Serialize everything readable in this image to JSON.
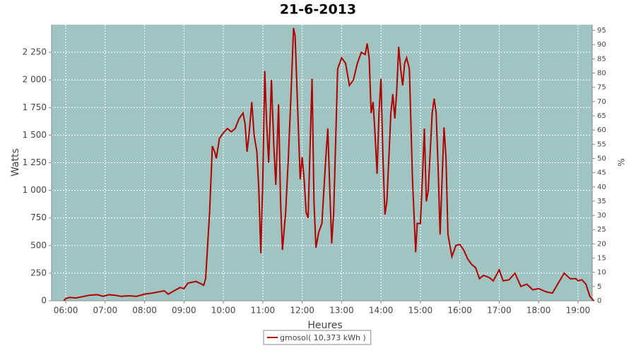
{
  "chart_data": {
    "type": "line",
    "title": "21-6-2013",
    "x_label": "Heures",
    "y_label": "Watts",
    "y2_label": "%",
    "x": [
      5.95,
      6.0,
      6.1,
      6.25,
      6.4,
      6.6,
      6.8,
      6.95,
      7.1,
      7.25,
      7.4,
      7.6,
      7.8,
      8.0,
      8.2,
      8.35,
      8.5,
      8.6,
      8.75,
      8.9,
      9.0,
      9.1,
      9.3,
      9.45,
      9.5,
      9.55,
      9.65,
      9.72,
      9.78,
      9.82,
      9.9,
      10.0,
      10.1,
      10.2,
      10.3,
      10.4,
      10.5,
      10.55,
      10.6,
      10.65,
      10.72,
      10.78,
      10.85,
      10.9,
      10.95,
      11.0,
      11.05,
      11.1,
      11.15,
      11.22,
      11.28,
      11.33,
      11.4,
      11.45,
      11.5,
      11.58,
      11.65,
      11.72,
      11.78,
      11.82,
      11.88,
      11.95,
      12.0,
      12.05,
      12.1,
      12.15,
      12.2,
      12.25,
      12.3,
      12.35,
      12.42,
      12.5,
      12.6,
      12.65,
      12.7,
      12.75,
      12.8,
      12.9,
      12.95,
      13.0,
      13.1,
      13.2,
      13.3,
      13.4,
      13.5,
      13.6,
      13.65,
      13.7,
      13.75,
      13.8,
      13.85,
      13.9,
      13.95,
      14.0,
      14.05,
      14.1,
      14.15,
      14.25,
      14.3,
      14.35,
      14.4,
      14.45,
      14.5,
      14.55,
      14.6,
      14.65,
      14.72,
      14.8,
      14.88,
      14.92,
      15.0,
      15.05,
      15.1,
      15.15,
      15.2,
      15.3,
      15.35,
      15.4,
      15.45,
      15.5,
      15.55,
      15.6,
      15.65,
      15.7,
      15.8,
      15.9,
      16.0,
      16.1,
      16.2,
      16.3,
      16.4,
      16.5,
      16.6,
      16.75,
      16.85,
      17.0,
      17.1,
      17.25,
      17.4,
      17.55,
      17.7,
      17.85,
      18.0,
      18.2,
      18.35,
      18.5,
      18.65,
      18.8,
      18.95,
      19.0,
      19.1,
      19.2,
      19.3,
      19.4
    ],
    "series": [
      {
        "name": "gmosol( 10,373 kWh )",
        "color": "#b00000",
        "values": [
          0,
          20,
          30,
          25,
          35,
          50,
          55,
          40,
          55,
          50,
          40,
          45,
          40,
          60,
          70,
          80,
          90,
          60,
          90,
          120,
          110,
          160,
          175,
          150,
          140,
          200,
          800,
          1400,
          1350,
          1290,
          1470,
          1520,
          1560,
          1530,
          1560,
          1650,
          1700,
          1600,
          1350,
          1500,
          1800,
          1500,
          1350,
          1000,
          430,
          1100,
          2080,
          1600,
          1250,
          2000,
          1400,
          1050,
          1780,
          900,
          460,
          800,
          1300,
          1900,
          2470,
          2400,
          1800,
          1100,
          1300,
          1100,
          800,
          750,
          1400,
          2010,
          900,
          480,
          620,
          700,
          1300,
          1560,
          1000,
          520,
          800,
          2100,
          2150,
          2200,
          2150,
          1950,
          2000,
          2150,
          2250,
          2230,
          2330,
          2200,
          1700,
          1800,
          1500,
          1150,
          1700,
          2010,
          1300,
          780,
          900,
          1700,
          1870,
          1650,
          1900,
          2300,
          2100,
          1950,
          2150,
          2200,
          2100,
          1100,
          440,
          700,
          700,
          1100,
          1560,
          900,
          1000,
          1700,
          1830,
          1700,
          1200,
          600,
          1100,
          1570,
          1300,
          600,
          400,
          500,
          510,
          460,
          380,
          330,
          300,
          200,
          230,
          210,
          180,
          280,
          180,
          190,
          250,
          130,
          150,
          100,
          110,
          80,
          70,
          160,
          250,
          200,
          200,
          180,
          190,
          150,
          40,
          0
        ]
      }
    ],
    "xlim": [
      5.64,
      19.36
    ],
    "xticks": [
      {
        "value": 6,
        "label": "06:00"
      },
      {
        "value": 7,
        "label": "07:00"
      },
      {
        "value": 8,
        "label": "08:00"
      },
      {
        "value": 9,
        "label": "09:00"
      },
      {
        "value": 10,
        "label": "10:00"
      },
      {
        "value": 11,
        "label": "11:00"
      },
      {
        "value": 12,
        "label": "12:00"
      },
      {
        "value": 13,
        "label": "13:00"
      },
      {
        "value": 14,
        "label": "14:00"
      },
      {
        "value": 15,
        "label": "15:00"
      },
      {
        "value": 16,
        "label": "16:00"
      },
      {
        "value": 17,
        "label": "17:00"
      },
      {
        "value": 18,
        "label": "18:00"
      },
      {
        "value": 19,
        "label": "19:00"
      }
    ],
    "ylim": [
      0,
      2500
    ],
    "yticks": [
      0,
      250,
      500,
      750,
      {
        "value": 1000,
        "label": "1 000"
      },
      {
        "value": 1250,
        "label": "1 250"
      },
      {
        "value": 1500,
        "label": "1 500"
      },
      {
        "value": 1750,
        "label": "1 750"
      },
      {
        "value": 2000,
        "label": "2 000"
      },
      {
        "value": 2250,
        "label": "2 250"
      }
    ],
    "y2lim": [
      0,
      97
    ],
    "y2ticks": [
      0,
      5,
      10,
      15,
      20,
      25,
      30,
      35,
      40,
      45,
      50,
      55,
      60,
      65,
      70,
      75,
      80,
      85,
      90,
      95
    ],
    "grid": true,
    "legend": "bottom",
    "plot_background": "#9fc4c2"
  }
}
